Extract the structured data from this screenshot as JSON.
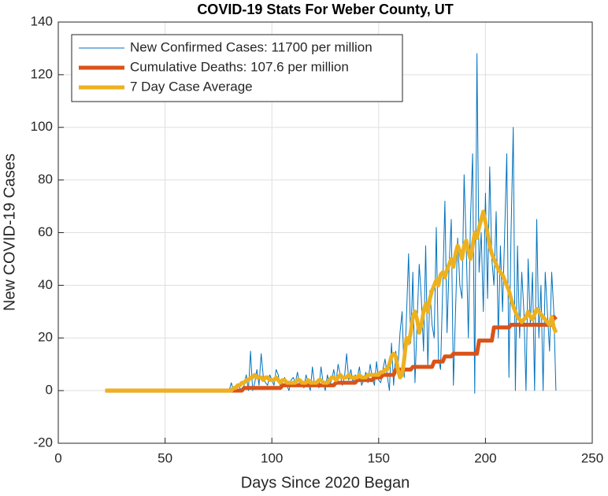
{
  "chart_data": {
    "type": "line",
    "title": "COVID-19 Stats For Weber County, UT",
    "xlabel": "Days Since 2020 Began",
    "ylabel": "New COVID-19 Cases",
    "xlim": [
      0,
      250
    ],
    "ylim": [
      -20,
      140
    ],
    "xticks": [
      0,
      50,
      100,
      150,
      200,
      250
    ],
    "yticks": [
      -20,
      0,
      20,
      40,
      60,
      80,
      100,
      120,
      140
    ],
    "grid": true,
    "legend": "upper left",
    "x": [
      22,
      80,
      81,
      82,
      83,
      84,
      85,
      86,
      87,
      88,
      89,
      90,
      91,
      92,
      93,
      94,
      95,
      96,
      97,
      98,
      99,
      100,
      101,
      102,
      103,
      104,
      105,
      106,
      107,
      108,
      109,
      110,
      111,
      112,
      113,
      114,
      115,
      116,
      117,
      118,
      119,
      120,
      121,
      122,
      123,
      124,
      125,
      126,
      127,
      128,
      129,
      130,
      131,
      132,
      133,
      134,
      135,
      136,
      137,
      138,
      139,
      140,
      141,
      142,
      143,
      144,
      145,
      146,
      147,
      148,
      149,
      150,
      151,
      152,
      153,
      154,
      155,
      156,
      157,
      158,
      159,
      160,
      161,
      162,
      163,
      164,
      165,
      166,
      167,
      168,
      169,
      170,
      171,
      172,
      173,
      174,
      175,
      176,
      177,
      178,
      179,
      180,
      181,
      182,
      183,
      184,
      185,
      186,
      187,
      188,
      189,
      190,
      191,
      192,
      193,
      194,
      195,
      196,
      197,
      198,
      199,
      200,
      201,
      202,
      203,
      204,
      205,
      206,
      207,
      208,
      209,
      210,
      211,
      212,
      213,
      214,
      215,
      216,
      217,
      218,
      219,
      220,
      221,
      222,
      223,
      224,
      225,
      226,
      227,
      228,
      229,
      230,
      231,
      232,
      233
    ],
    "series": [
      {
        "name": "New Confirmed Cases: 11700 per million",
        "color": "#0072bd",
        "width": 1,
        "values": [
          0,
          0,
          3,
          0,
          0,
          2,
          1,
          0,
          2,
          6,
          0,
          15,
          0,
          3,
          8,
          2,
          14,
          5,
          3,
          2,
          6,
          4,
          2,
          8,
          6,
          1,
          3,
          5,
          2,
          0,
          4,
          5,
          3,
          7,
          2,
          4,
          1,
          6,
          3,
          0,
          9,
          2,
          4,
          1,
          9,
          3,
          0,
          6,
          2,
          4,
          8,
          3,
          10,
          6,
          2,
          5,
          14,
          4,
          8,
          3,
          6,
          5,
          9,
          2,
          4,
          7,
          3,
          10,
          5,
          2,
          11,
          4,
          3,
          8,
          12,
          6,
          0,
          18,
          2,
          15,
          8,
          22,
          30,
          5,
          28,
          52,
          18,
          45,
          3,
          26,
          48,
          35,
          15,
          55,
          9,
          38,
          25,
          20,
          62,
          12,
          8,
          40,
          72,
          22,
          48,
          65,
          2,
          30,
          58,
          40,
          35,
          82,
          55,
          20,
          65,
          90,
          -1,
          128,
          45,
          60,
          30,
          75,
          35,
          85,
          50,
          40,
          68,
          20,
          55,
          30,
          60,
          90,
          5,
          60,
          100,
          0,
          55,
          20,
          45,
          30,
          0,
          50,
          25,
          45,
          0,
          65,
          20,
          40,
          0,
          45,
          30,
          15,
          45,
          30,
          0
        ]
      },
      {
        "name": "Cumulative Deaths: 107.6 per million",
        "color": "#d95319",
        "width": 5,
        "values": [
          0,
          0,
          0,
          0,
          0,
          0,
          0,
          0,
          1,
          1,
          1,
          1,
          1,
          1,
          1,
          1,
          1,
          1,
          1,
          1,
          1,
          1,
          1,
          1,
          1,
          1,
          2,
          2,
          2,
          2,
          2,
          2,
          2,
          2,
          2,
          2,
          2,
          2,
          2,
          2,
          2,
          2,
          2,
          2,
          2,
          2,
          2,
          2,
          2,
          2,
          2,
          3,
          3,
          3,
          3,
          3,
          3,
          3,
          3,
          3,
          3,
          4,
          4,
          4,
          4,
          4,
          4,
          4,
          4,
          5,
          5,
          5,
          5,
          6,
          6,
          6,
          6,
          6,
          6,
          8,
          8,
          8,
          8,
          8,
          8,
          8,
          8,
          9,
          9,
          9,
          9,
          9,
          9,
          9,
          9,
          9,
          9,
          11,
          11,
          11,
          11,
          11,
          13,
          13,
          13,
          13,
          14,
          14,
          14,
          14,
          14,
          14,
          14,
          14,
          14,
          14,
          14,
          14,
          19,
          19,
          19,
          19,
          19,
          19,
          19,
          24,
          24,
          24,
          24,
          24,
          24,
          24,
          24,
          25,
          25,
          25,
          25,
          25,
          25,
          25,
          25,
          25,
          25,
          25,
          25,
          25,
          25,
          25,
          25,
          25,
          25,
          25,
          25,
          28,
          27
        ]
      },
      {
        "name": "7 Day Case Average",
        "color": "#edb120",
        "width": 5,
        "values": [
          0,
          0,
          0,
          1,
          1,
          2,
          2,
          3,
          3,
          4,
          4,
          5,
          5,
          6,
          5,
          5,
          5,
          4,
          5,
          5,
          4,
          4,
          4,
          5,
          4,
          3,
          4,
          4,
          3,
          3,
          3,
          3,
          3,
          4,
          4,
          3,
          3,
          3,
          4,
          3,
          3,
          3,
          3,
          4,
          4,
          3,
          3,
          3,
          4,
          5,
          5,
          4,
          5,
          6,
          5,
          5,
          5,
          6,
          5,
          5,
          5,
          5,
          6,
          5,
          5,
          5,
          6,
          6,
          6,
          6,
          6,
          6,
          7,
          7,
          8,
          8,
          10,
          13,
          14,
          13,
          8,
          5,
          6,
          12,
          20,
          18,
          22,
          28,
          30,
          27,
          22,
          25,
          30,
          33,
          30,
          35,
          38,
          40,
          42,
          40,
          44,
          45,
          43,
          46,
          48,
          50,
          47,
          52,
          55,
          53,
          50,
          55,
          57,
          53,
          50,
          55,
          60,
          58,
          62,
          65,
          68,
          64,
          60,
          55,
          52,
          50,
          48,
          46,
          45,
          44,
          42,
          40,
          38,
          35,
          32,
          30,
          28,
          27,
          26,
          27,
          28,
          30,
          28,
          27,
          29,
          31,
          30,
          29,
          28,
          27,
          26,
          25,
          28,
          24,
          22
        ]
      }
    ]
  }
}
